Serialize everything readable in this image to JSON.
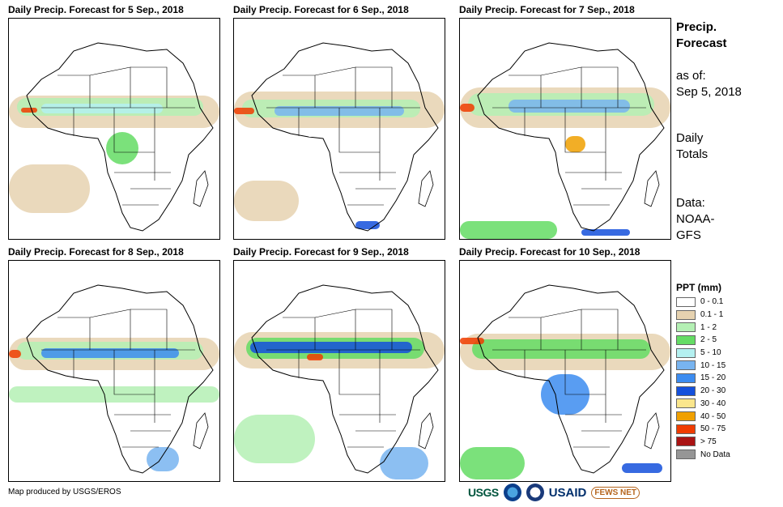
{
  "panels": [
    {
      "title": "Daily Precip. Forecast for 5 Sep., 2018"
    },
    {
      "title": "Daily Precip. Forecast for 6 Sep., 2018"
    },
    {
      "title": "Daily Precip. Forecast for 7 Sep., 2018"
    },
    {
      "title": "Daily Precip. Forecast for 8 Sep., 2018"
    },
    {
      "title": "Daily Precip. Forecast for 9 Sep., 2018"
    },
    {
      "title": "Daily Precip. Forecast for 10 Sep., 2018"
    }
  ],
  "sidebar": {
    "title_line1": "Precip.",
    "title_line2": "Forecast",
    "asof_label": "as of:",
    "asof_date": "Sep 5, 2018",
    "totals_line1": "Daily",
    "totals_line2": "Totals",
    "data_label": "Data:",
    "data_source_line1": "NOAA-",
    "data_source_line2": "GFS"
  },
  "legend": {
    "title": "PPT (mm)",
    "items": [
      {
        "label": "0 - 0.1",
        "color": "#ffffff"
      },
      {
        "label": "0.1 - 1",
        "color": "#e6d2b0"
      },
      {
        "label": "1 - 2",
        "color": "#b4f0b4"
      },
      {
        "label": "2 - 5",
        "color": "#64dc64"
      },
      {
        "label": "5 - 10",
        "color": "#b4f0f0"
      },
      {
        "label": "10 - 15",
        "color": "#78b4f0"
      },
      {
        "label": "15 - 20",
        "color": "#3c8cf0"
      },
      {
        "label": "20 - 30",
        "color": "#1450dc"
      },
      {
        "label": "30 - 40",
        "color": "#fae68c"
      },
      {
        "label": "40 - 50",
        "color": "#f0a000"
      },
      {
        "label": "50 - 75",
        "color": "#f03c00"
      },
      {
        "label": "> 75",
        "color": "#aa1414"
      },
      {
        "label": "No Data",
        "color": "#969696"
      }
    ]
  },
  "footer": {
    "credit": "Map produced by USGS/EROS",
    "logos": {
      "usgs": "USGS",
      "usaid": "USAID",
      "fews": "FEWS NET"
    }
  }
}
